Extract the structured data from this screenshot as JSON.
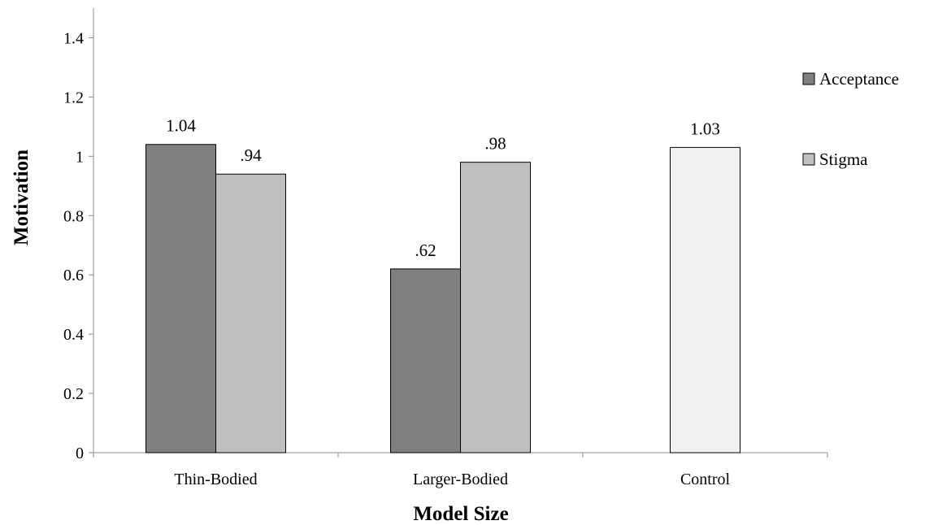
{
  "chart_data": {
    "type": "bar",
    "xlabel": "Model Size",
    "ylabel": "Motivation",
    "ylim": [
      0,
      1.5
    ],
    "y_ticks": [
      0,
      0.2,
      0.4,
      0.6,
      0.8,
      1,
      1.2,
      1.4
    ],
    "y_tick_labels": [
      "0",
      "0.2",
      "0.4",
      "0.6",
      "0.8",
      "1",
      "1.2",
      "1.4"
    ],
    "grid": false,
    "legend_position": "right",
    "groups": [
      {
        "category": "Thin-Bodied",
        "bars": [
          {
            "series": "Acceptance",
            "value": 1.04,
            "label": "1.04",
            "color": "#808080"
          },
          {
            "series": "Stigma",
            "value": 0.94,
            "label": ".94",
            "color": "#bfbfbf"
          }
        ]
      },
      {
        "category": "Larger-Bodied",
        "bars": [
          {
            "series": "Acceptance",
            "value": 0.62,
            "label": ".62",
            "color": "#808080"
          },
          {
            "series": "Stigma",
            "value": 0.98,
            "label": ".98",
            "color": "#bfbfbf"
          }
        ]
      },
      {
        "category": "Control",
        "bars": [
          {
            "series": "Control",
            "value": 1.03,
            "label": "1.03",
            "color": "#f2f2f2"
          }
        ]
      }
    ],
    "legend": [
      {
        "name": "Acceptance",
        "color": "#808080"
      },
      {
        "name": "Stigma",
        "color": "#bfbfbf"
      }
    ]
  }
}
